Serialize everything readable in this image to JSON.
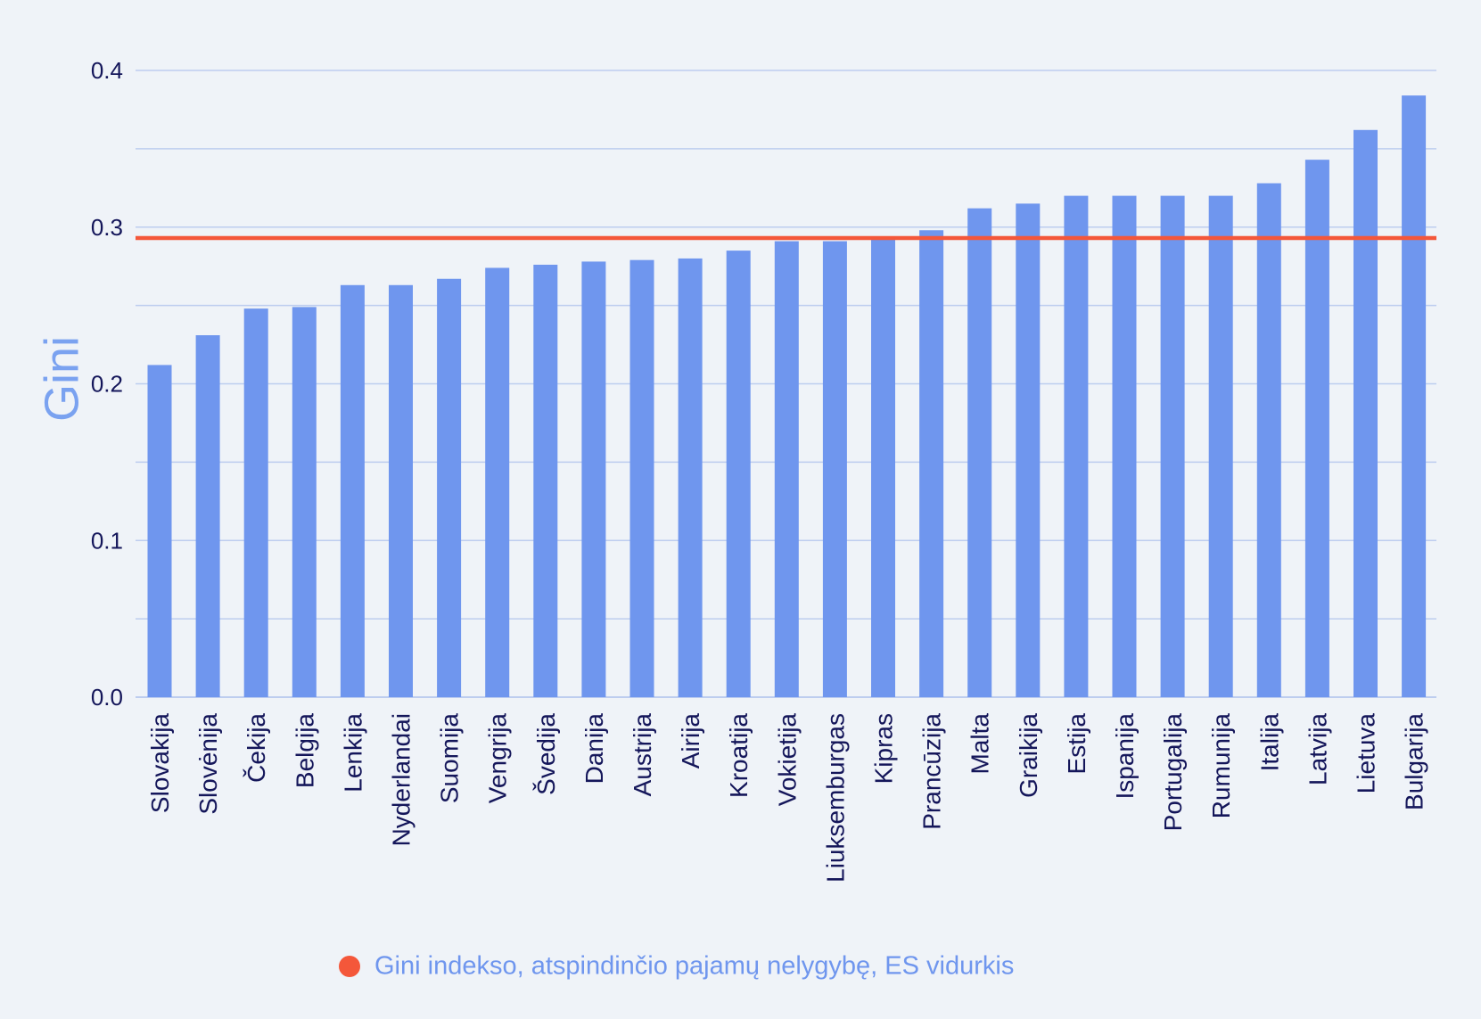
{
  "chart_data": {
    "type": "bar",
    "title": "",
    "xlabel": "",
    "ylabel": "Gini",
    "ylim": [
      0,
      0.4
    ],
    "yticks": [
      "0.0",
      "0.1",
      "0.2",
      "0.3",
      "0.4"
    ],
    "grid": true,
    "categories": [
      "Slovakija",
      "Slovėnija",
      "Čekija",
      "Belgija",
      "Lenkija",
      "Nyderlandai",
      "Suomija",
      "Vengrija",
      "Švedija",
      "Danija",
      "Austrija",
      "Airija",
      "Kroatija",
      "Vokietija",
      "Liuksemburgas",
      "Kipras",
      "Prancūzija",
      "Malta",
      "Graikija",
      "Estija",
      "Ispanija",
      "Portugalija",
      "Rumunija",
      "Italija",
      "Latvija",
      "Lietuva",
      "Bulgarija"
    ],
    "values": [
      0.212,
      0.231,
      0.248,
      0.249,
      0.263,
      0.263,
      0.267,
      0.274,
      0.276,
      0.278,
      0.279,
      0.28,
      0.285,
      0.291,
      0.291,
      0.294,
      0.298,
      0.312,
      0.315,
      0.32,
      0.32,
      0.32,
      0.32,
      0.328,
      0.343,
      0.362,
      0.384
    ],
    "reference_line": {
      "value": 0.293,
      "label": "Gini indekso, atspindinčio pajamų nelygybę, ES vidurkis"
    },
    "legend": {
      "position": "bottom-center",
      "label": "Gini indekso, atspindinčio pajamų nelygybę, ES vidurkis"
    },
    "colors": {
      "bar": "#6f96ee",
      "reference": "#f4573a",
      "grid": "#bdcdef",
      "text": "#14165a",
      "ylabel": "#7aa2f0",
      "background": "#eff3f8"
    }
  }
}
